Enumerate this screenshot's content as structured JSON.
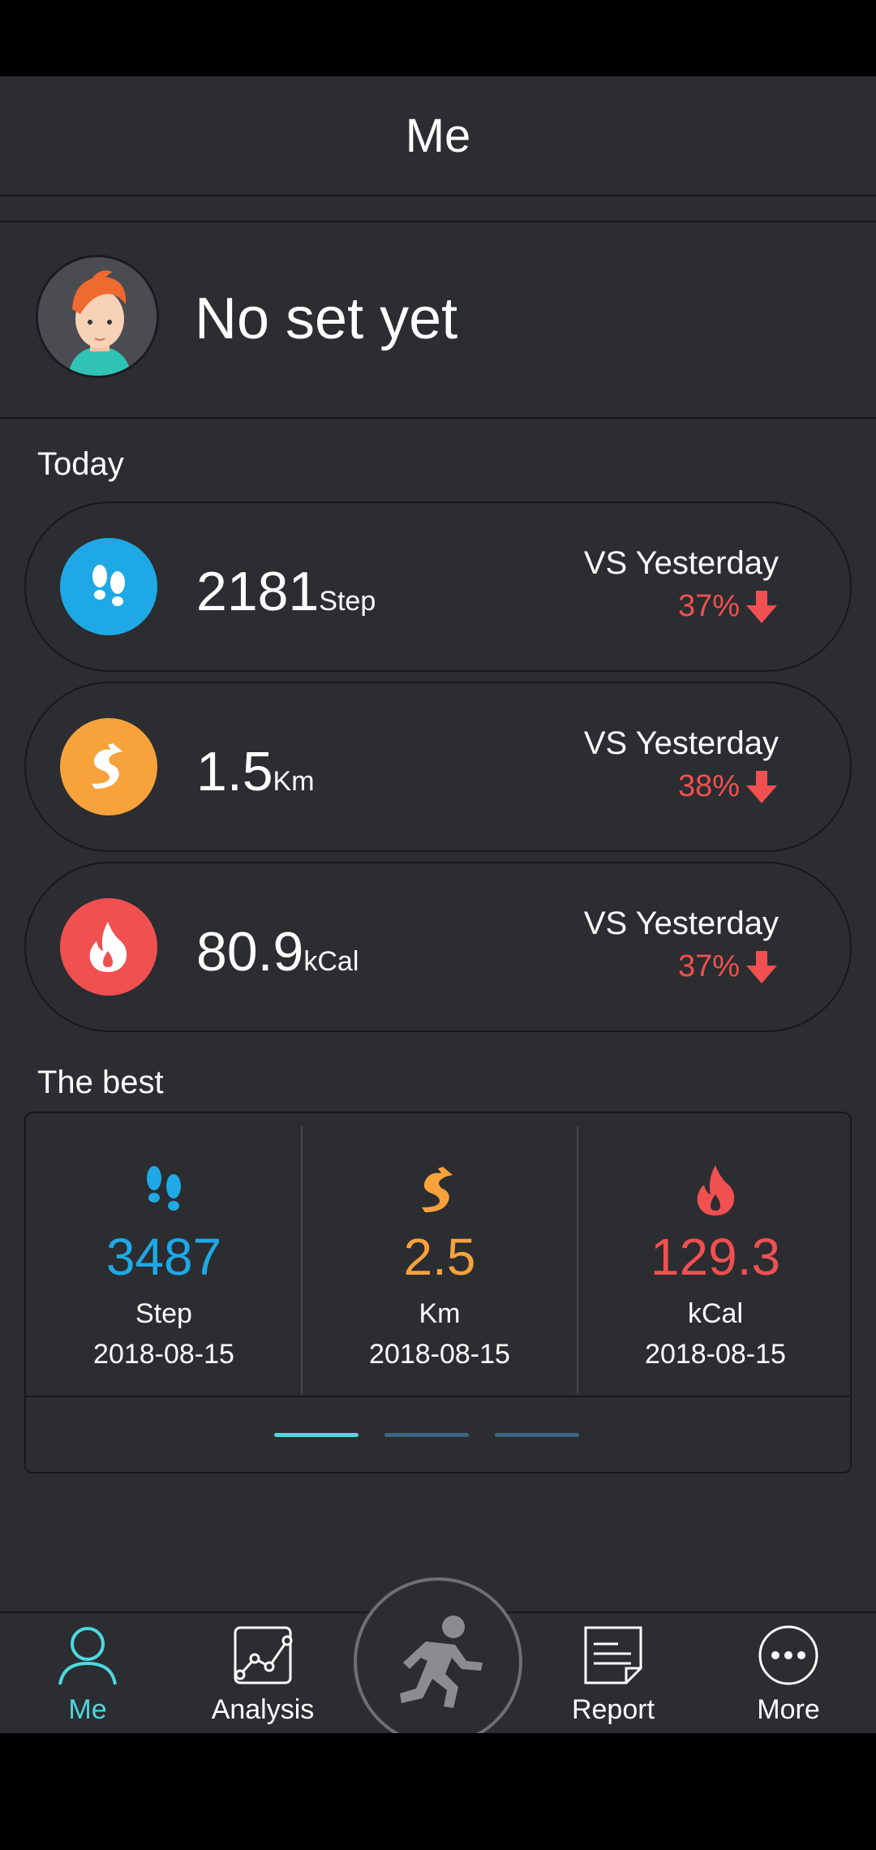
{
  "header": {
    "title": "Me"
  },
  "profile": {
    "name": "No set yet"
  },
  "today": {
    "label": "Today",
    "stats": [
      {
        "value": "2181",
        "unit": "Step",
        "vs_label": "VS Yesterday",
        "change": "37%",
        "icon": "footprints-icon",
        "color": "#1ea9e6"
      },
      {
        "value": "1.5",
        "unit": "Km",
        "vs_label": "VS Yesterday",
        "change": "38%",
        "icon": "winding-road-icon",
        "color": "#f7a23b"
      },
      {
        "value": "80.9",
        "unit": "kCal",
        "vs_label": "VS Yesterday",
        "change": "37%",
        "icon": "flame-icon",
        "color": "#f05050"
      }
    ]
  },
  "best": {
    "label": "The best",
    "items": [
      {
        "value": "3487",
        "unit": "Step",
        "date": "2018-08-15",
        "icon": "footprints-icon",
        "color": "#1ea9e6"
      },
      {
        "value": "2.5",
        "unit": "Km",
        "date": "2018-08-15",
        "icon": "winding-road-icon",
        "color": "#f7a23b"
      },
      {
        "value": "129.3",
        "unit": "kCal",
        "date": "2018-08-15",
        "icon": "flame-icon",
        "color": "#f05050"
      }
    ],
    "pager": {
      "pages": 3,
      "active": 1
    }
  },
  "nav": {
    "items": [
      {
        "label": "Me",
        "icon": "person-icon",
        "active": true
      },
      {
        "label": "Analysis",
        "icon": "chart-icon",
        "active": false
      },
      {
        "label": "Report",
        "icon": "document-icon",
        "active": false
      },
      {
        "label": "More",
        "icon": "more-icon",
        "active": false
      }
    ],
    "center_icon": "running-man-icon"
  },
  "colors": {
    "accent": "#4ed8e0",
    "down": "#f05050",
    "background": "#2b2d31"
  }
}
